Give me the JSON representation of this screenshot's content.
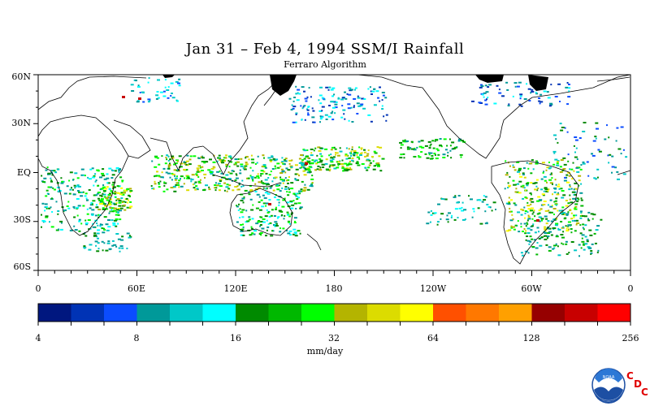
{
  "title": "Jan 31 – Feb 4, 1994 SSM/I Rainfall",
  "subtitle": "Ferraro Algorithm",
  "lat_labels": [
    "60N",
    "30N",
    "EQ",
    "30S",
    "60S"
  ],
  "lon_labels": [
    "0",
    "60E",
    "120E",
    "180",
    "120W",
    "60W",
    "0"
  ],
  "colorbar": {
    "colors": [
      "#00177f",
      "#0033b5",
      "#0b4cff",
      "#009999",
      "#00c8c8",
      "#00ffff",
      "#008a00",
      "#00b800",
      "#00ff00",
      "#b4b400",
      "#dcdc00",
      "#ffff00",
      "#ff5000",
      "#ff7800",
      "#ffa000",
      "#960000",
      "#c80000",
      "#ff0000"
    ],
    "tick_labels": [
      "4",
      "8",
      "16",
      "32",
      "64",
      "128",
      "256"
    ],
    "units": "mm/day"
  },
  "logo": {
    "name": "noaa-logo",
    "text": "NOAA"
  },
  "cdc_letters": [
    "C",
    "D",
    "C"
  ]
}
